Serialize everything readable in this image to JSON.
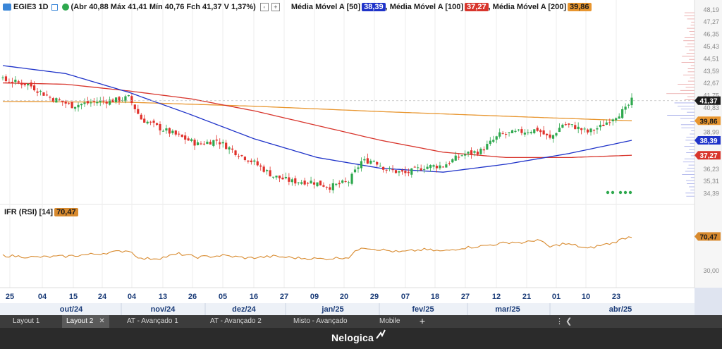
{
  "header": {
    "symbol": "EGIE3 1D",
    "ohlc": "(Abr 40,88 Máx 41,41 Mín 40,76 Fch 41,37 V 1,37%)",
    "ma50_label": "Média Móvel A [50]",
    "ma50_value": "38,39",
    "ma100_label": ", Média Móvel A [100]",
    "ma100_value": "37,27",
    "ma200_label": ", Média Móvel A [200]",
    "ma200_value": "39,86"
  },
  "rsi": {
    "label": "IFR (RSI) [14]",
    "value": "70,47",
    "axis_label": "30,00"
  },
  "tabs": [
    "Layout 1",
    "Layout 2",
    "AT - Avançado 1",
    "AT - Avançado 2",
    "Misto - Avançado",
    "Mobile"
  ],
  "active_tab": "Layout 2",
  "brand": "Nelogica",
  "colors": {
    "up": "#2ea84e",
    "down": "#e0312b",
    "ma50": "#1f33c9",
    "ma100": "#d8352c",
    "ma200": "#e8962f",
    "rsi": "#d88a2e",
    "last": "#1b1b1b"
  },
  "chart_data": {
    "type": "candlestick",
    "price_ticks": [
      "48,19",
      "47,27",
      "46,35",
      "45,43",
      "44,51",
      "43,59",
      "42,67",
      "41,75",
      "40,83",
      "39,99",
      "38,99",
      "37,15",
      "36,23",
      "35,31",
      "34,39"
    ],
    "price_markers": {
      "last": "41,37",
      "ma200": "39,86",
      "ma50": "38,39",
      "ma100": "37,27"
    },
    "ylim": [
      34.0,
      48.5
    ],
    "day_labels": [
      "25",
      "04",
      "15",
      "24",
      "04",
      "13",
      "26",
      "05",
      "16",
      "27",
      "09",
      "20",
      "29",
      "07",
      "18",
      "27",
      "12",
      "21",
      "01",
      "10",
      "23"
    ],
    "month_labels": [
      "out/24",
      "nov/24",
      "dez/24",
      "jan/25",
      "fev/25",
      "mar/25",
      "abr/25"
    ],
    "close_waypoints": [
      [
        0,
        42.9
      ],
      [
        8,
        42.6
      ],
      [
        15,
        41.6
      ],
      [
        22,
        41.0
      ],
      [
        30,
        41.3
      ],
      [
        36,
        41.4
      ],
      [
        40,
        41.6
      ],
      [
        44,
        40.0
      ],
      [
        50,
        39.3
      ],
      [
        56,
        38.7
      ],
      [
        62,
        38.1
      ],
      [
        68,
        38.4
      ],
      [
        74,
        37.5
      ],
      [
        80,
        36.7
      ],
      [
        86,
        35.7
      ],
      [
        92,
        35.3
      ],
      [
        98,
        35.3
      ],
      [
        104,
        34.9
      ],
      [
        110,
        35.3
      ],
      [
        114,
        36.8
      ],
      [
        118,
        36.9
      ],
      [
        122,
        36.2
      ],
      [
        128,
        35.9
      ],
      [
        134,
        36.4
      ],
      [
        140,
        36.5
      ],
      [
        146,
        37.3
      ],
      [
        152,
        37.6
      ],
      [
        158,
        38.8
      ],
      [
        164,
        39.0
      ],
      [
        170,
        39.2
      ],
      [
        174,
        38.5
      ],
      [
        178,
        39.6
      ],
      [
        182,
        39.4
      ],
      [
        186,
        39.0
      ],
      [
        190,
        39.4
      ],
      [
        194,
        40.1
      ],
      [
        198,
        40.7
      ],
      [
        200,
        41.37
      ]
    ],
    "ma50_waypoints": [
      [
        0,
        44.0
      ],
      [
        20,
        43.4
      ],
      [
        40,
        42.0
      ],
      [
        60,
        40.3
      ],
      [
        80,
        38.5
      ],
      [
        100,
        37.1
      ],
      [
        120,
        36.3
      ],
      [
        140,
        36.0
      ],
      [
        160,
        36.6
      ],
      [
        180,
        37.4
      ],
      [
        200,
        38.39
      ]
    ],
    "ma100_waypoints": [
      [
        0,
        42.7
      ],
      [
        20,
        42.6
      ],
      [
        40,
        42.1
      ],
      [
        60,
        41.5
      ],
      [
        80,
        40.6
      ],
      [
        100,
        39.5
      ],
      [
        120,
        38.4
      ],
      [
        140,
        37.5
      ],
      [
        160,
        37.1
      ],
      [
        180,
        37.1
      ],
      [
        200,
        37.27
      ]
    ],
    "ma200_waypoints": [
      [
        0,
        41.3
      ],
      [
        40,
        41.25
      ],
      [
        80,
        40.95
      ],
      [
        120,
        40.55
      ],
      [
        160,
        40.2
      ],
      [
        200,
        39.86
      ]
    ],
    "rsi_waypoints": [
      [
        0,
        48
      ],
      [
        10,
        46
      ],
      [
        20,
        47
      ],
      [
        30,
        50
      ],
      [
        40,
        54
      ],
      [
        44,
        44
      ],
      [
        50,
        45
      ],
      [
        56,
        50
      ],
      [
        62,
        46
      ],
      [
        70,
        48
      ],
      [
        78,
        45
      ],
      [
        86,
        47
      ],
      [
        94,
        45
      ],
      [
        102,
        44
      ],
      [
        110,
        46
      ],
      [
        114,
        58
      ],
      [
        120,
        55
      ],
      [
        126,
        52
      ],
      [
        134,
        55
      ],
      [
        140,
        53
      ],
      [
        146,
        57
      ],
      [
        152,
        59
      ],
      [
        158,
        62
      ],
      [
        162,
        64
      ],
      [
        166,
        63
      ],
      [
        170,
        67
      ],
      [
        174,
        58
      ],
      [
        178,
        62
      ],
      [
        182,
        60
      ],
      [
        186,
        56
      ],
      [
        190,
        60
      ],
      [
        194,
        63
      ],
      [
        198,
        69
      ],
      [
        200,
        70.47
      ]
    ],
    "rsi_ylim": [
      10,
      90
    ]
  }
}
